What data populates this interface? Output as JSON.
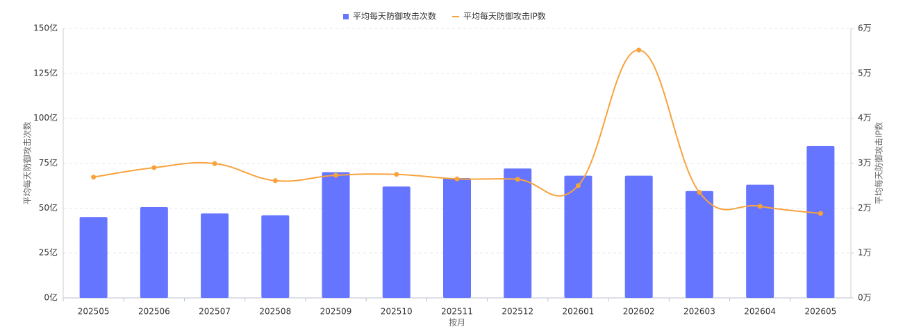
{
  "chart_data": {
    "type": "bar-line",
    "categories": [
      "202505",
      "202506",
      "202507",
      "202508",
      "202509",
      "202510",
      "202511",
      "202512",
      "202601",
      "202602",
      "202603",
      "202604",
      "202605"
    ],
    "series": [
      {
        "name": "平均每天防御攻击次数",
        "type": "bar",
        "color": "#6675ff",
        "values": [
          45,
          50.5,
          47,
          46,
          70,
          62,
          66.7,
          72,
          68,
          68,
          59.5,
          63,
          84.5
        ]
      },
      {
        "name": "平均每天防御攻击IP数",
        "type": "line",
        "axis": "y2",
        "color": "#f8a23c",
        "values": [
          2.69,
          2.9,
          2.99,
          2.61,
          2.73,
          2.75,
          2.65,
          2.64,
          2.5,
          5.52,
          2.35,
          2.04,
          1.88
        ]
      }
    ],
    "ylabel": "平均每天防御攻击次数",
    "y2label": "平均每天防御攻击IP数",
    "xlabel": "按月",
    "ylim": [
      0,
      150
    ],
    "yticks": [
      {
        "value": 0,
        "label": "0亿"
      },
      {
        "value": 25,
        "label": "25亿"
      },
      {
        "value": 50,
        "label": "50亿"
      },
      {
        "value": 75,
        "label": "75亿"
      },
      {
        "value": 100,
        "label": "100亿"
      },
      {
        "value": 125,
        "label": "125亿"
      },
      {
        "value": 150,
        "label": "150亿"
      }
    ],
    "y2lim": [
      0,
      6
    ],
    "y2ticks": [
      {
        "value": 0,
        "label": "0万"
      },
      {
        "value": 1,
        "label": "1万"
      },
      {
        "value": 2,
        "label": "2万"
      },
      {
        "value": 3,
        "label": "3万"
      },
      {
        "value": 4,
        "label": "4万"
      },
      {
        "value": 5,
        "label": "5万"
      },
      {
        "value": 6,
        "label": "6万"
      }
    ],
    "grid": true,
    "legend": "top"
  }
}
